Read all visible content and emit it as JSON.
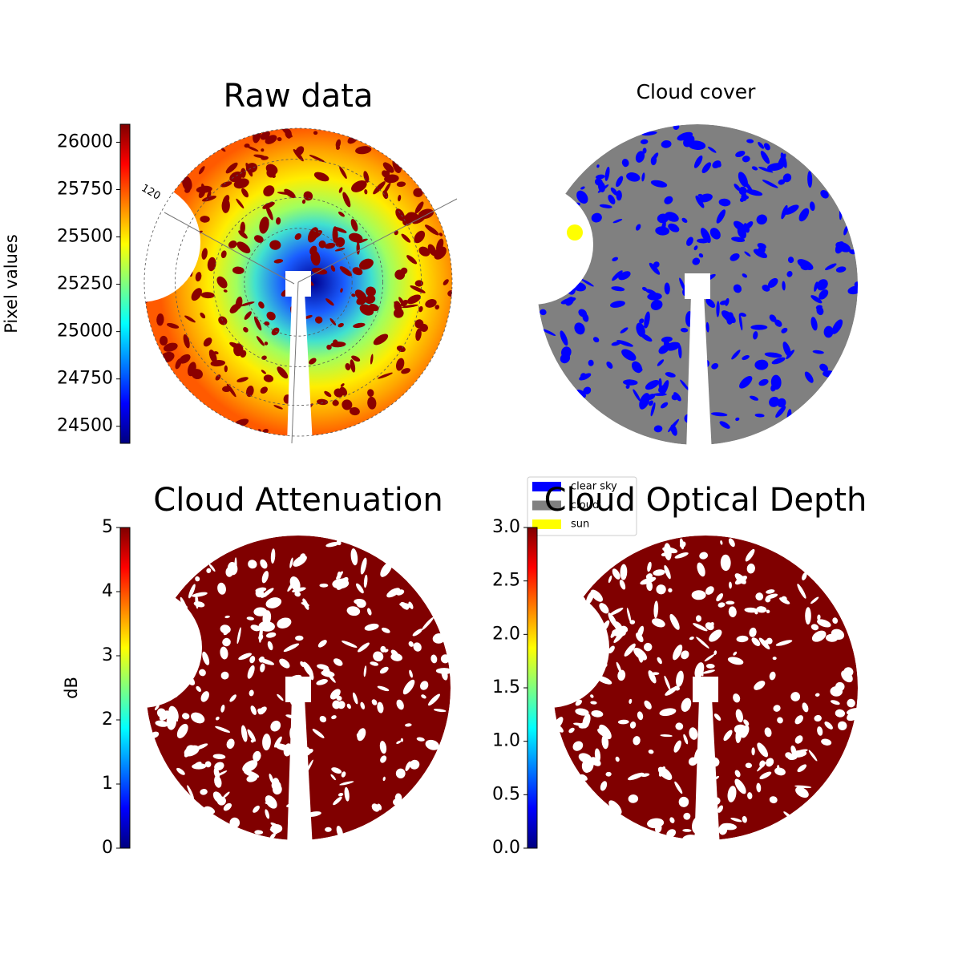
{
  "chart_data": [
    {
      "type": "image",
      "title": "Raw data",
      "colormap": "jet",
      "colorbar_label": "Pixel values",
      "clim": [
        24410,
        26095
      ],
      "cticks": [
        24500,
        24750,
        25000,
        25250,
        25500,
        25750,
        26000
      ],
      "annotations": [
        "120"
      ]
    },
    {
      "type": "image",
      "title": "Cloud cover",
      "legend": [
        {
          "name": "clear sky",
          "color": "#0000ff"
        },
        {
          "name": "cloud",
          "color": "#808080"
        },
        {
          "name": "sun",
          "color": "#ffff00"
        }
      ]
    },
    {
      "type": "image",
      "title": "Cloud Attenuation",
      "colormap": "jet",
      "colorbar_label": "dB",
      "clim": [
        0,
        5
      ],
      "cticks": [
        0,
        1,
        2,
        3,
        4,
        5
      ]
    },
    {
      "type": "image",
      "title": "Cloud Optical Depth",
      "colormap": "jet",
      "clim": [
        0,
        3
      ],
      "cticks": [
        {
          "value": 0,
          "label": "0.0"
        },
        0.5,
        {
          "value": 1,
          "label": "1.0"
        },
        1.5,
        {
          "value": 2,
          "label": "2.0"
        },
        2.5,
        {
          "value": 3,
          "label": "3.0"
        }
      ]
    }
  ]
}
